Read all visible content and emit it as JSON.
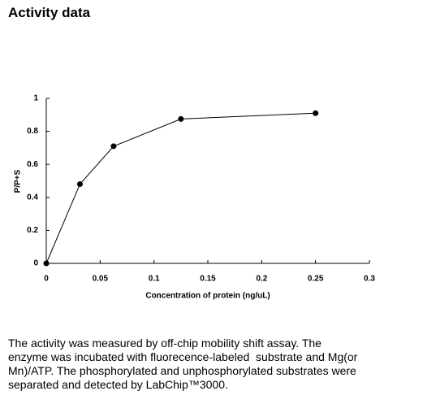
{
  "title": "Activity data",
  "chart_data": {
    "type": "line",
    "x_label": "Concentration of protein (ng/uL)",
    "y_label": "P/P+S",
    "x": [
      0,
      0.03125,
      0.0625,
      0.125,
      0.25
    ],
    "series": [
      {
        "color": "#000000",
        "values": [
          0,
          0.48,
          0.71,
          0.875,
          0.91
        ]
      }
    ],
    "xlim": [
      0,
      0.3
    ],
    "xticks": [
      0,
      0.05,
      0.1,
      0.15,
      0.2,
      0.25,
      0.3
    ],
    "ylim": [
      0,
      1
    ],
    "yticks": [
      0,
      0.2,
      0.4,
      0.6,
      0.8,
      1
    ],
    "grid": false
  },
  "description": {
    "lines": [
      "The activity was measured by off-chip mobility shift assay. The",
      "enzyme was incubated with fluorecence-labeled  substrate and Mg(or",
      "Mn)/ATP. The phosphorylated and unphosphorylated substrates were",
      "separated and detected by LabChip™3000."
    ]
  }
}
